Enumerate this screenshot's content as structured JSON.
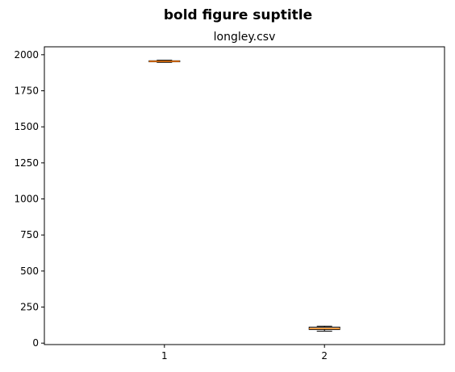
{
  "figure": {
    "suptitle": "bold figure suptitle"
  },
  "chart_data": {
    "type": "box",
    "title": "longley.csv",
    "xlabel": "",
    "ylabel": "",
    "categories": [
      "1",
      "2"
    ],
    "ylim": [
      -10,
      2055
    ],
    "yticks": [
      0,
      250,
      500,
      750,
      1000,
      1250,
      1500,
      1750,
      2000
    ],
    "ytick_labels": [
      "0",
      "250",
      "500",
      "750",
      "1000",
      "1250",
      "1500",
      "1750",
      "2000"
    ],
    "boxes": [
      {
        "label": "1",
        "whisker_low": 1947,
        "q1": 1951,
        "median": 1954.5,
        "q3": 1958,
        "whisker_high": 1962
      },
      {
        "label": "2",
        "whisker_low": 83,
        "q1": 94.5,
        "median": 100.5,
        "q3": 111,
        "whisker_high": 117
      }
    ],
    "colors": {
      "box": "#000000",
      "median": "#ff7f0e",
      "whisker": "#000000"
    },
    "grid": false,
    "legend": "none"
  }
}
